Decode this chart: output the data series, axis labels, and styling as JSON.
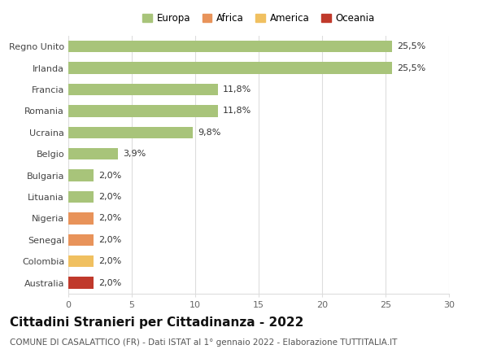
{
  "categories": [
    "Australia",
    "Colombia",
    "Senegal",
    "Nigeria",
    "Lituania",
    "Bulgaria",
    "Belgio",
    "Ucraina",
    "Romania",
    "Francia",
    "Irlanda",
    "Regno Unito"
  ],
  "values": [
    2.0,
    2.0,
    2.0,
    2.0,
    2.0,
    2.0,
    3.9,
    9.8,
    11.8,
    11.8,
    25.5,
    25.5
  ],
  "percentages": [
    "2,0%",
    "2,0%",
    "2,0%",
    "2,0%",
    "2,0%",
    "2,0%",
    "3,9%",
    "9,8%",
    "11,8%",
    "11,8%",
    "25,5%",
    "25,5%"
  ],
  "colors": [
    "#c0392b",
    "#f0c060",
    "#e8935a",
    "#e8935a",
    "#a8c47a",
    "#a8c47a",
    "#a8c47a",
    "#a8c47a",
    "#a8c47a",
    "#a8c47a",
    "#a8c47a",
    "#a8c47a"
  ],
  "legend": [
    {
      "label": "Europa",
      "color": "#a8c47a"
    },
    {
      "label": "Africa",
      "color": "#e8935a"
    },
    {
      "label": "America",
      "color": "#f0c060"
    },
    {
      "label": "Oceania",
      "color": "#c0392b"
    }
  ],
  "xlim": [
    0,
    30
  ],
  "xticks": [
    0,
    5,
    10,
    15,
    20,
    25,
    30
  ],
  "title": "Cittadini Stranieri per Cittadinanza - 2022",
  "subtitle": "COMUNE DI CASALATTICO (FR) - Dati ISTAT al 1° gennaio 2022 - Elaborazione TUTTITALIA.IT",
  "background_color": "#ffffff",
  "bar_height": 0.55,
  "grid_color": "#dddddd",
  "label_fontsize": 8,
  "tick_fontsize": 8,
  "title_fontsize": 11,
  "subtitle_fontsize": 7.5
}
